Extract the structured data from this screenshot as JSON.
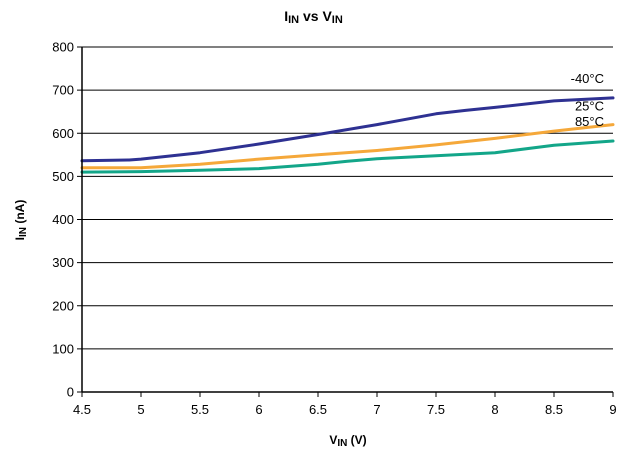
{
  "chart_data": {
    "type": "line",
    "title": {
      "main": "I",
      "sub": "IN",
      "mid": " vs V",
      "sub2": "IN"
    },
    "xlabel": {
      "main": "V",
      "sub": "IN",
      "rest": " (V)"
    },
    "ylabel": {
      "main": "I",
      "sub": "IN",
      "rest": " (nA)"
    },
    "xlim": [
      4.5,
      9
    ],
    "ylim": [
      0,
      800
    ],
    "xticks": [
      "4.5",
      "5",
      "5.5",
      "6",
      "6.5",
      "7",
      "7.5",
      "8",
      "8.5",
      "9"
    ],
    "yticks": [
      "0",
      "100",
      "200",
      "300",
      "400",
      "500",
      "600",
      "700",
      "800"
    ],
    "grid": "horizontal",
    "series": [
      {
        "name": "-40°C",
        "color": "#2e3192",
        "points": [
          [
            4.5,
            536
          ],
          [
            4.9,
            538
          ],
          [
            5.0,
            540
          ],
          [
            5.5,
            555
          ],
          [
            6.0,
            575
          ],
          [
            6.5,
            597
          ],
          [
            7.0,
            620
          ],
          [
            7.5,
            645
          ],
          [
            7.75,
            653
          ],
          [
            8.0,
            660
          ],
          [
            8.5,
            675
          ],
          [
            9.0,
            682
          ]
        ]
      },
      {
        "name": "25°C",
        "color": "#f5a83a",
        "points": [
          [
            4.5,
            520
          ],
          [
            4.9,
            520
          ],
          [
            5.0,
            520
          ],
          [
            5.5,
            528
          ],
          [
            6.0,
            540
          ],
          [
            6.5,
            550
          ],
          [
            7.0,
            560
          ],
          [
            7.5,
            573
          ],
          [
            8.0,
            588
          ],
          [
            8.5,
            605
          ],
          [
            9.0,
            620
          ]
        ]
      },
      {
        "name": "85°C",
        "color": "#13a689",
        "points": [
          [
            4.5,
            510
          ],
          [
            5.0,
            511
          ],
          [
            5.5,
            514
          ],
          [
            6.0,
            518
          ],
          [
            6.5,
            528
          ],
          [
            6.75,
            535
          ],
          [
            7.0,
            541
          ],
          [
            7.5,
            548
          ],
          [
            8.0,
            555
          ],
          [
            8.5,
            572
          ],
          [
            9.0,
            582
          ]
        ]
      }
    ]
  }
}
